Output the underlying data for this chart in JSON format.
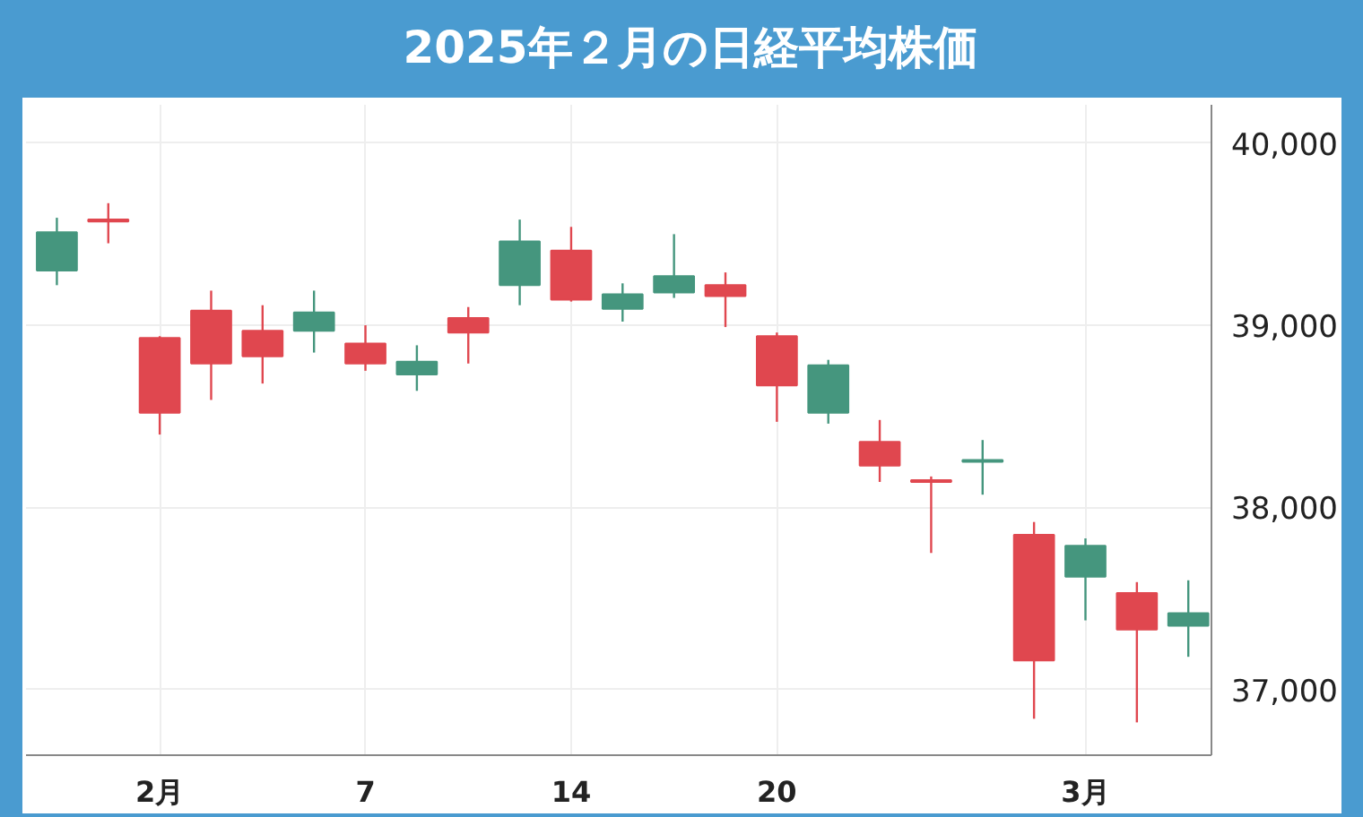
{
  "chart_data": {
    "type": "candlestick",
    "title": "2025年２月の日経平均株価",
    "categories": [
      null,
      null,
      "2月",
      null,
      null,
      null,
      "7",
      null,
      null,
      null,
      "14",
      null,
      null,
      null,
      "20",
      null,
      null,
      null,
      null,
      null,
      "3月",
      null,
      null
    ],
    "ohlc": [
      [
        39300,
        39590,
        39220,
        39510
      ],
      [
        39580,
        39670,
        39450,
        39570
      ],
      [
        38930,
        38940,
        38400,
        38520
      ],
      [
        39080,
        39190,
        38590,
        38790
      ],
      [
        38970,
        39110,
        38680,
        38830
      ],
      [
        38970,
        39190,
        38850,
        39070
      ],
      [
        38900,
        39000,
        38750,
        38790
      ],
      [
        38730,
        38890,
        38640,
        38800
      ],
      [
        39040,
        39100,
        38790,
        38960
      ],
      [
        39220,
        39580,
        39110,
        39460
      ],
      [
        39410,
        39540,
        39130,
        39140
      ],
      [
        39090,
        39230,
        39020,
        39170
      ],
      [
        39180,
        39500,
        39150,
        39270
      ],
      [
        39220,
        39290,
        38990,
        39160
      ],
      [
        38940,
        38960,
        38470,
        38670
      ],
      [
        38520,
        38810,
        38460,
        38780
      ],
      [
        38360,
        38480,
        38140,
        38230
      ],
      [
        38150,
        38170,
        37750,
        38140
      ],
      [
        38250,
        38370,
        38070,
        38260
      ],
      [
        37850,
        37920,
        36840,
        37160
      ],
      [
        37620,
        37830,
        37380,
        37790
      ],
      [
        37530,
        37590,
        36820,
        37330
      ],
      [
        37350,
        37600,
        37180,
        37420
      ]
    ],
    "colors": [
      "#45967e",
      "#e0474f",
      "#e0474f",
      "#e0474f",
      "#e0474f",
      "#45967e",
      "#e0474f",
      "#45967e",
      "#e0474f",
      "#45967e",
      "#e0474f",
      "#45967e",
      "#45967e",
      "#e0474f",
      "#e0474f",
      "#45967e",
      "#e0474f",
      "#e0474f",
      "#45967e",
      "#e0474f",
      "#45967e",
      "#e0474f",
      "#45967e"
    ],
    "ylim": [
      36640,
      40210
    ],
    "yticks": [
      {
        "value": 37000,
        "label": "37,000"
      },
      {
        "value": 38000,
        "label": "38,000"
      },
      {
        "value": 39000,
        "label": "39,000"
      },
      {
        "value": 40000,
        "label": "40,000"
      }
    ],
    "grid": true
  }
}
